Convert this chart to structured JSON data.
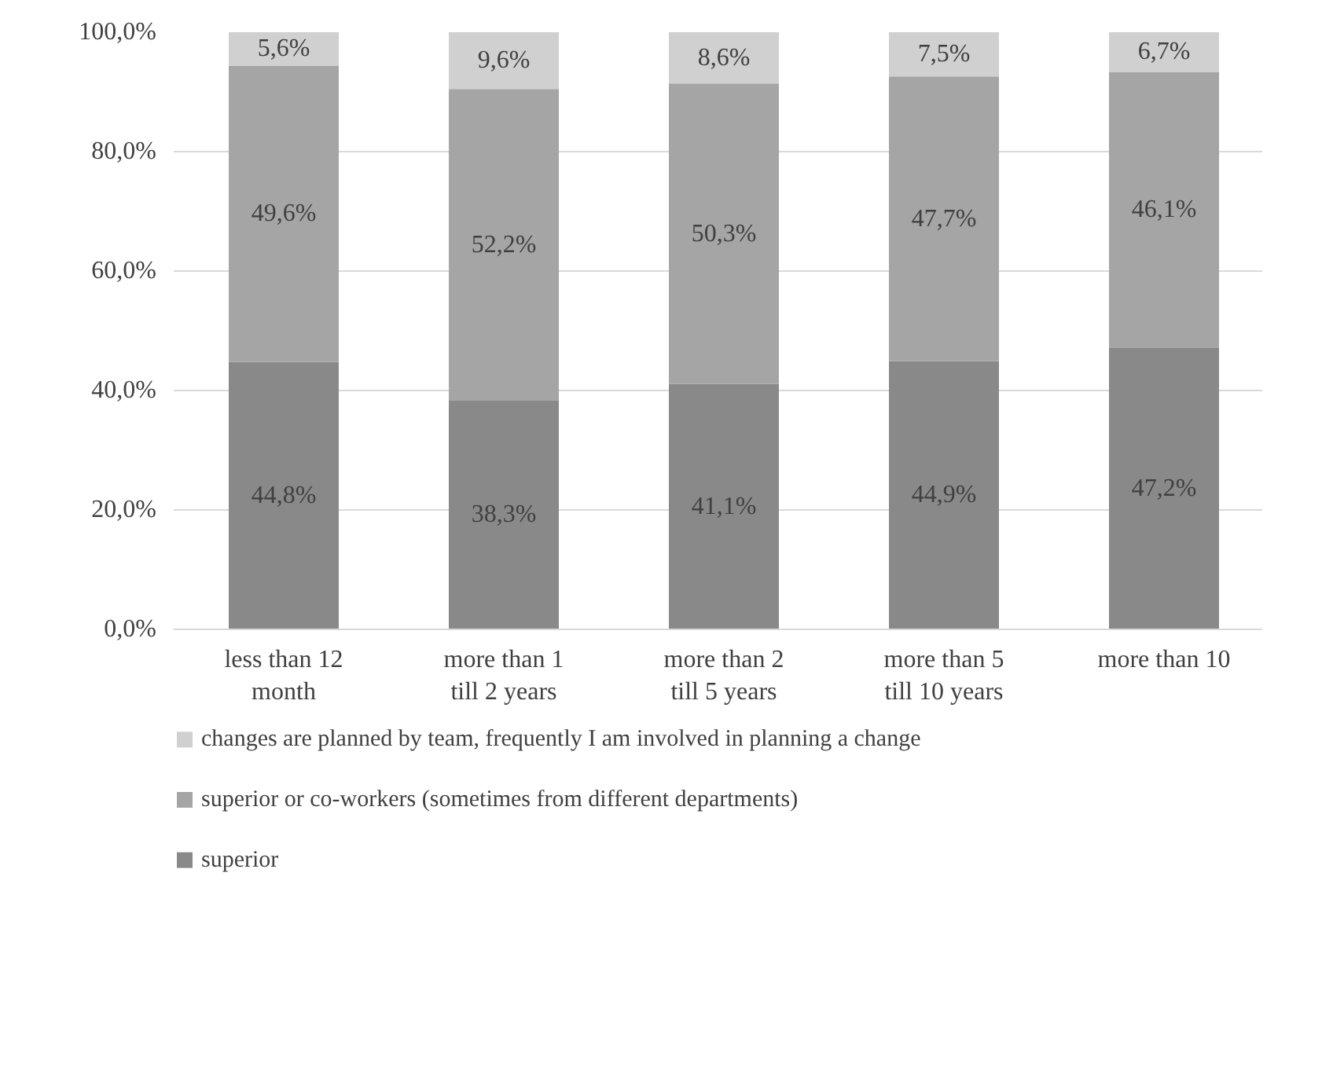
{
  "chart_data": {
    "type": "bar",
    "stacked": true,
    "categories": [
      "less than 12 month",
      "more than 1 till 2 years",
      "more than 2 till 5 years",
      "more than 5 till 10 years",
      "more than 10"
    ],
    "series": [
      {
        "name": "superior",
        "color": "#898989",
        "values": [
          44.8,
          38.3,
          41.1,
          44.9,
          47.2
        ],
        "value_labels": [
          "44,8%",
          "38,3%",
          "41,1%",
          "44,9%",
          "47,2%"
        ]
      },
      {
        "name": "superior or co-workers (sometimes from different departments)",
        "color": "#a5a5a5",
        "values": [
          49.6,
          52.2,
          50.3,
          47.7,
          46.1
        ],
        "value_labels": [
          "49,6%",
          "52,2%",
          "50,3%",
          "47,7%",
          "46,1%"
        ]
      },
      {
        "name": "changes are planned by team, frequently I am involved in planning a change",
        "color": "#d0d0d0",
        "values": [
          5.6,
          9.6,
          8.6,
          7.5,
          6.7
        ],
        "value_labels": [
          "5,6%",
          "9,6%",
          "8,6%",
          "7,5%",
          "6,7%"
        ]
      }
    ],
    "ylim": [
      0,
      100
    ],
    "yticks": [
      {
        "value": 0,
        "label": "0,0%"
      },
      {
        "value": 20,
        "label": "20,0%"
      },
      {
        "value": 40,
        "label": "40,0%"
      },
      {
        "value": 60,
        "label": "60,0%"
      },
      {
        "value": 80,
        "label": "80,0%"
      },
      {
        "value": 100,
        "label": "100,0%"
      }
    ],
    "grid": "y",
    "legend": "bottom"
  }
}
